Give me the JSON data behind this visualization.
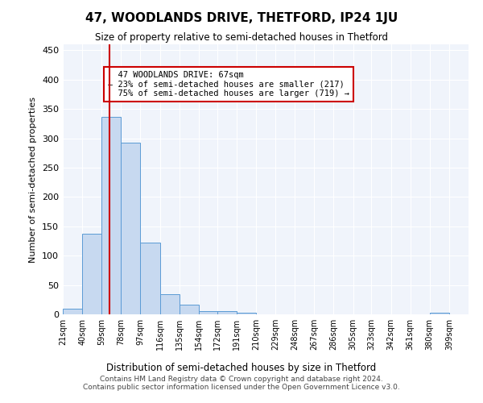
{
  "title": "47, WOODLANDS DRIVE, THETFORD, IP24 1JU",
  "subtitle": "Size of property relative to semi-detached houses in Thetford",
  "xlabel_bottom": "Distribution of semi-detached houses by size in Thetford",
  "ylabel": "Number of semi-detached properties",
  "footnote": "Contains HM Land Registry data © Crown copyright and database right 2024.\nContains public sector information licensed under the Open Government Licence v3.0.",
  "bins": [
    "21sqm",
    "40sqm",
    "59sqm",
    "78sqm",
    "97sqm",
    "116sqm",
    "135sqm",
    "154sqm",
    "172sqm",
    "191sqm",
    "210sqm",
    "229sqm",
    "248sqm",
    "267sqm",
    "286sqm",
    "305sqm",
    "323sqm",
    "342sqm",
    "361sqm",
    "380sqm",
    "399sqm"
  ],
  "bin_edges": [
    21,
    40,
    59,
    78,
    97,
    116,
    135,
    154,
    172,
    191,
    210,
    229,
    248,
    267,
    286,
    305,
    323,
    342,
    361,
    380,
    399
  ],
  "bar_heights": [
    10,
    137,
    336,
    292,
    122,
    34,
    16,
    6,
    6,
    3,
    0,
    0,
    0,
    0,
    0,
    0,
    0,
    0,
    0,
    3
  ],
  "bar_color": "#c7d9f0",
  "bar_edge_color": "#5b9bd5",
  "property_size": 67,
  "property_label": "47 WOODLANDS DRIVE: 67sqm",
  "pct_smaller": 23,
  "count_smaller": 217,
  "pct_larger": 75,
  "count_larger": 719,
  "vline_color": "#cc0000",
  "annotation_box_edge": "#cc0000",
  "ylim": [
    0,
    460
  ],
  "yticks": [
    0,
    50,
    100,
    150,
    200,
    250,
    300,
    350,
    400,
    450
  ],
  "bg_color": "#f0f4fb",
  "plot_bg_color": "#f0f4fb"
}
